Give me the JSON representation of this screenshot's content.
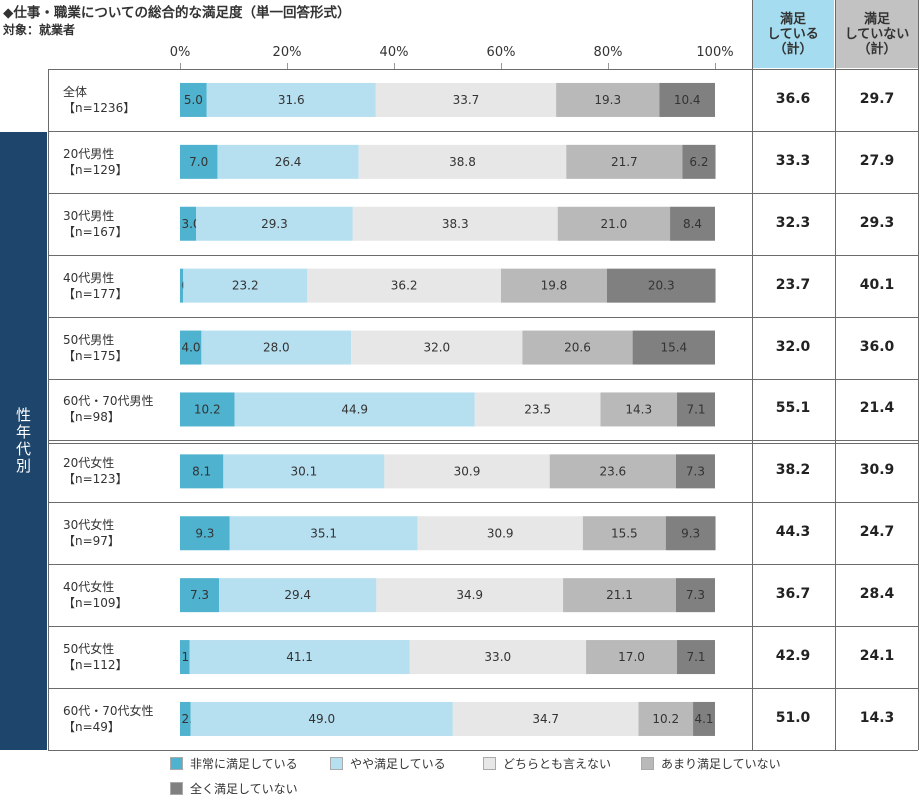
{
  "title": "◆仕事・職業についての総合的な満足度（単一回答形式）",
  "subtitle": "対象：就業者",
  "side_label": "性年代別",
  "header": {
    "satisfied": "満足\nしている\n（計）",
    "unsatisfied": "満足\nしていない\n（計）"
  },
  "colors": [
    "#4fb3cf",
    "#b6dff0",
    "#e7e7e7",
    "#b9b9b9",
    "#808080"
  ],
  "chart_data": {
    "type": "bar",
    "orientation": "horizontal",
    "stacked": true,
    "xlim": [
      0,
      100
    ],
    "x_ticks": [
      "0%",
      "20%",
      "40%",
      "60%",
      "80%",
      "100%"
    ],
    "categories": [
      {
        "name": "全体",
        "n": "【n=1236】"
      },
      {
        "name": "20代男性",
        "n": "【n=129】"
      },
      {
        "name": "30代男性",
        "n": "【n=167】"
      },
      {
        "name": "40代男性",
        "n": "【n=177】"
      },
      {
        "name": "50代男性",
        "n": "【n=175】"
      },
      {
        "name": "60代・70代男性",
        "n": "【n=98】"
      },
      {
        "name": "20代女性",
        "n": "【n=123】"
      },
      {
        "name": "30代女性",
        "n": "【n=97】"
      },
      {
        "name": "40代女性",
        "n": "【n=109】"
      },
      {
        "name": "50代女性",
        "n": "【n=112】"
      },
      {
        "name": "60代・70代女性",
        "n": "【n=49】"
      }
    ],
    "series": [
      {
        "name": "非常に満足している",
        "values": [
          5.0,
          7.0,
          3.0,
          0.6,
          4.0,
          10.2,
          8.1,
          9.3,
          7.3,
          1.8,
          2.0
        ]
      },
      {
        "name": "やや満足している",
        "values": [
          31.6,
          26.4,
          29.3,
          23.2,
          28.0,
          44.9,
          30.1,
          35.1,
          29.4,
          41.1,
          49.0
        ]
      },
      {
        "name": "どちらとも言えない",
        "values": [
          33.7,
          38.8,
          38.3,
          36.2,
          32.0,
          23.5,
          30.9,
          30.9,
          34.9,
          33.0,
          34.7
        ]
      },
      {
        "name": "あまり満足していない",
        "values": [
          19.3,
          21.7,
          21.0,
          19.8,
          20.6,
          14.3,
          23.6,
          15.5,
          21.1,
          17.0,
          10.2
        ]
      },
      {
        "name": "全く満足していない",
        "values": [
          10.4,
          6.2,
          8.4,
          20.3,
          15.4,
          7.1,
          7.3,
          9.3,
          7.3,
          7.1,
          4.1
        ]
      }
    ],
    "satisfied_total": [
      "36.6",
      "33.3",
      "32.3",
      "23.7",
      "32.0",
      "55.1",
      "38.2",
      "44.3",
      "36.7",
      "42.9",
      "51.0"
    ],
    "unsatisfied_total": [
      "29.7",
      "27.9",
      "29.3",
      "40.1",
      "36.0",
      "21.4",
      "30.9",
      "24.7",
      "28.4",
      "24.1",
      "14.3"
    ],
    "legend_position": "bottom"
  }
}
